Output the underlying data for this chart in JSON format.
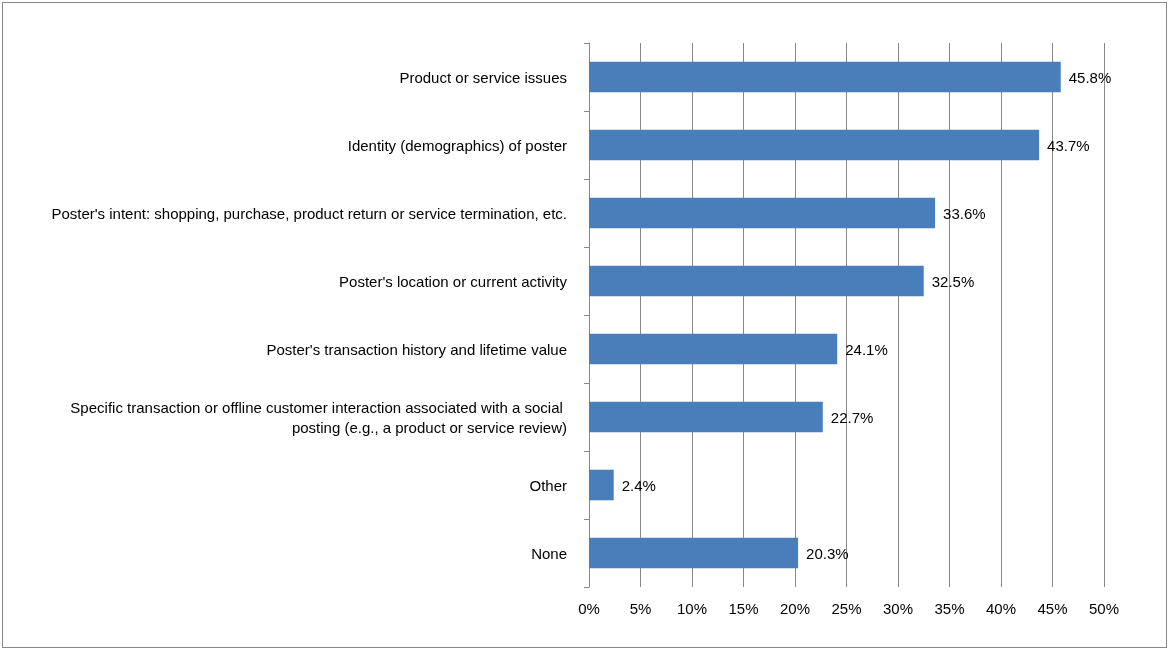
{
  "chart_data": {
    "type": "bar",
    "orientation": "horizontal",
    "categories": [
      "Product or service issues",
      "Identity (demographics) of poster",
      "Poster's intent: shopping, purchase, product return or service termination, etc.",
      "Poster's location or current activity",
      "Poster's transaction history and lifetime value",
      "Specific transaction or offline customer interaction associated with a social posting (e.g., a product or service review)",
      "Other",
      "None"
    ],
    "values": [
      45.8,
      43.7,
      33.6,
      32.5,
      24.1,
      22.7,
      2.4,
      20.3
    ],
    "value_labels": [
      "45.8%",
      "43.7%",
      "33.6%",
      "32.5%",
      "24.1%",
      "22.7%",
      "2.4%",
      "20.3%"
    ],
    "color": "#4a7ebb",
    "xlim": [
      0,
      50
    ],
    "xticks": [
      {
        "value": 0,
        "label": "0%"
      },
      {
        "value": 5,
        "label": "5%"
      },
      {
        "value": 10,
        "label": "10%"
      },
      {
        "value": 15,
        "label": "15%"
      },
      {
        "value": 20,
        "label": "20%"
      },
      {
        "value": 25,
        "label": "25%"
      },
      {
        "value": 30,
        "label": "30%"
      },
      {
        "value": 35,
        "label": "35%"
      },
      {
        "value": 40,
        "label": "40%"
      },
      {
        "value": 45,
        "label": "45%"
      },
      {
        "value": 50,
        "label": "50%"
      }
    ],
    "grid": "x"
  }
}
